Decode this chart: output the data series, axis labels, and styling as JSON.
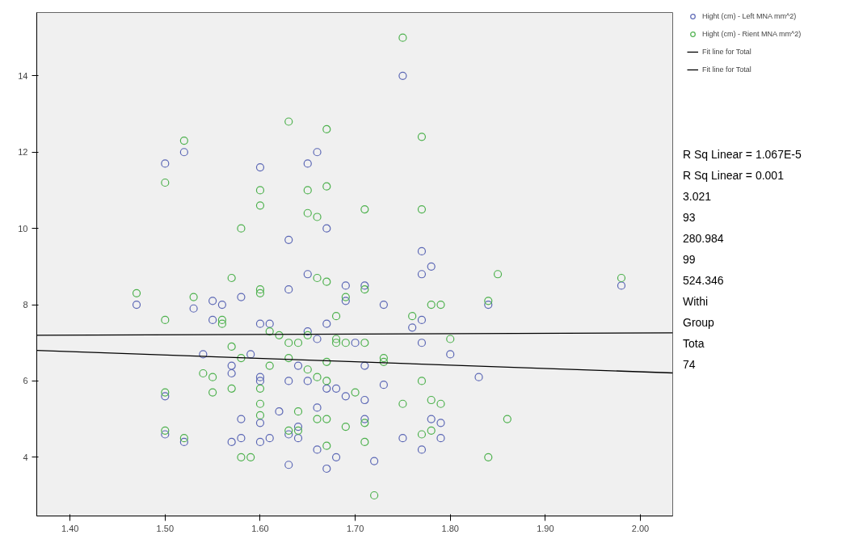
{
  "chart_data": {
    "type": "scatter",
    "xlim": [
      1.365,
      2.034
    ],
    "ylim": [
      2.46,
      15.66
    ],
    "xticks": [
      {
        "value": 1.4,
        "label": "1.40"
      },
      {
        "value": 1.5,
        "label": "1.50"
      },
      {
        "value": 1.6,
        "label": "1.60"
      },
      {
        "value": 1.7,
        "label": "1.70"
      },
      {
        "value": 1.8,
        "label": "1.80"
      },
      {
        "value": 1.9,
        "label": "1.90"
      },
      {
        "value": 2.0,
        "label": "2.00"
      }
    ],
    "yticks": [
      4,
      6,
      8,
      10,
      12,
      14
    ],
    "grid": false,
    "legend": "right",
    "marker": "circle",
    "series": [
      {
        "name": "Hight (cm) - Left MNA mm^2)",
        "color": "#5b67b5",
        "x": [
          1.75,
          1.52,
          1.5,
          1.6,
          1.66,
          1.65,
          1.63,
          1.67,
          1.77,
          1.78,
          1.77,
          1.98,
          1.84,
          1.47,
          1.53,
          1.55,
          1.56,
          1.58,
          1.63,
          1.65,
          1.69,
          1.71,
          1.73,
          1.69,
          1.76,
          1.77,
          1.55,
          1.6,
          1.61,
          1.65,
          1.67,
          1.66,
          1.7,
          1.77,
          1.8,
          1.54,
          1.59,
          1.57,
          1.64,
          1.71,
          1.57,
          1.6,
          1.6,
          1.63,
          1.65,
          1.67,
          1.68,
          1.69,
          1.71,
          1.73,
          1.83,
          1.5,
          1.62,
          1.66,
          1.6,
          1.58,
          1.64,
          1.71,
          1.78,
          1.79,
          1.5,
          1.52,
          1.57,
          1.58,
          1.6,
          1.61,
          1.63,
          1.64,
          1.66,
          1.68,
          1.72,
          1.63,
          1.67,
          1.75,
          1.77,
          1.79
        ],
        "values": [
          14.0,
          12.0,
          11.7,
          11.6,
          12.0,
          11.7,
          9.7,
          10.0,
          9.4,
          9.0,
          8.8,
          8.5,
          8.0,
          8.0,
          7.9,
          8.1,
          8.0,
          8.2,
          8.4,
          8.8,
          8.5,
          8.5,
          8.0,
          8.1,
          7.4,
          7.6,
          7.6,
          7.5,
          7.5,
          7.3,
          7.5,
          7.1,
          7.0,
          7.0,
          6.7,
          6.7,
          6.7,
          6.4,
          6.4,
          6.4,
          6.2,
          6.1,
          6.0,
          6.0,
          6.0,
          5.8,
          5.8,
          5.6,
          5.5,
          5.9,
          6.1,
          5.6,
          5.2,
          5.3,
          4.9,
          5.0,
          4.8,
          5.0,
          5.0,
          4.9,
          4.6,
          4.4,
          4.4,
          4.5,
          4.4,
          4.5,
          4.6,
          4.5,
          4.2,
          4.0,
          3.9,
          3.8,
          3.7,
          4.5,
          4.2,
          4.5
        ]
      },
      {
        "name": "Hight (cm) - Rient MNA mm^2)",
        "color": "#4db14d",
        "x": [
          1.75,
          1.63,
          1.67,
          1.52,
          1.5,
          1.77,
          1.6,
          1.65,
          1.67,
          1.6,
          1.71,
          1.77,
          1.65,
          1.66,
          1.58,
          1.47,
          1.53,
          1.57,
          1.6,
          1.6,
          1.66,
          1.67,
          1.71,
          1.69,
          1.85,
          1.98,
          1.84,
          1.78,
          1.79,
          1.5,
          1.56,
          1.56,
          1.61,
          1.62,
          1.65,
          1.63,
          1.64,
          1.68,
          1.68,
          1.69,
          1.71,
          1.76,
          1.68,
          1.8,
          1.57,
          1.58,
          1.63,
          1.73,
          1.73,
          1.67,
          1.61,
          1.65,
          1.54,
          1.55,
          1.66,
          1.67,
          1.77,
          1.57,
          1.6,
          1.55,
          1.7,
          1.5,
          1.6,
          1.64,
          1.66,
          1.67,
          1.71,
          1.75,
          1.78,
          1.79,
          1.6,
          1.5,
          1.52,
          1.64,
          1.69,
          1.67,
          1.71,
          1.78,
          1.77,
          1.58,
          1.59,
          1.84,
          1.72,
          1.86,
          1.63
        ],
        "values": [
          15.0,
          12.8,
          12.6,
          12.3,
          11.2,
          12.4,
          11.0,
          11.0,
          11.1,
          10.6,
          10.5,
          10.5,
          10.4,
          10.3,
          10.0,
          8.3,
          8.2,
          8.7,
          8.3,
          8.4,
          8.7,
          8.6,
          8.4,
          8.2,
          8.8,
          8.7,
          8.1,
          8.0,
          8.0,
          7.6,
          7.5,
          7.6,
          7.3,
          7.2,
          7.2,
          7.0,
          7.0,
          7.1,
          7.0,
          7.0,
          7.0,
          7.7,
          7.7,
          7.1,
          6.9,
          6.6,
          6.6,
          6.6,
          6.5,
          6.5,
          6.4,
          6.3,
          6.2,
          6.1,
          6.1,
          6.0,
          6.0,
          5.8,
          5.8,
          5.7,
          5.7,
          5.7,
          5.4,
          5.2,
          5.0,
          5.0,
          4.9,
          5.4,
          5.5,
          5.4,
          5.1,
          4.7,
          4.5,
          4.7,
          4.8,
          4.3,
          4.4,
          4.7,
          4.6,
          4.0,
          4.0,
          4.0,
          3.0,
          5.0,
          4.7
        ]
      },
      {
        "name": "Fit line for Total",
        "type": "line",
        "color": "#000000",
        "marker": "none",
        "x": [
          1.365,
          2.034
        ],
        "values": [
          7.2,
          7.26
        ]
      },
      {
        "name": "Fit line for Total",
        "type": "line",
        "color": "#000000",
        "marker": "none",
        "x": [
          1.365,
          2.034
        ],
        "values": [
          6.8,
          6.21
        ]
      }
    ],
    "annotations": [
      "R Sq Linear = 1.067E-5",
      "R Sq Linear = 0.001",
      "3.021",
      "93",
      "280.984",
      "99",
      "524.346",
      "Withi",
      "Group",
      "Tota",
      "74"
    ]
  }
}
